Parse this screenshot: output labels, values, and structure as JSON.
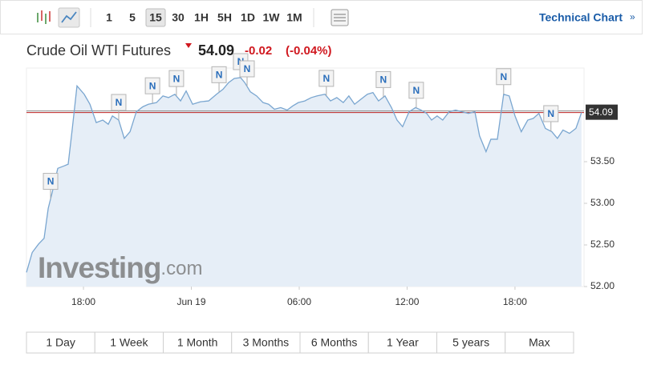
{
  "toolbar": {
    "intervals": [
      "1",
      "5",
      "15",
      "30",
      "1H",
      "5H",
      "1D",
      "1W",
      "1M"
    ],
    "link": "Technical Chart"
  },
  "header": {
    "title": "Crude Oil WTI Futures",
    "price": 54.09,
    "change": "-0.02",
    "change_pct": "(-0.04%)"
  },
  "watermark": {
    "brand": "Investing",
    "suffix": ".com"
  },
  "chart_data": {
    "type": "line",
    "color": "#7aa6d0",
    "fill": "#e6eef7",
    "grid": false,
    "x": [
      -9.17,
      -8.85,
      -8.5,
      -8.19,
      -7.96,
      -7.74,
      -7.43,
      -7.07,
      -6.85,
      -6.62,
      -6.36,
      -5.96,
      -5.64,
      -5.29,
      -4.93,
      -4.62,
      -4.39,
      -4.04,
      -3.73,
      -3.41,
      -3.06,
      -2.7,
      -2.39,
      -1.94,
      -1.58,
      -1.27,
      -0.92,
      -0.6,
      -0.29,
      0.07,
      0.51,
      0.96,
      1.4,
      1.76,
      2.07,
      2.39,
      2.74,
      2.97,
      3.28,
      3.63,
      3.99,
      4.3,
      4.62,
      4.97,
      5.33,
      5.64,
      5.95,
      6.31,
      6.67,
      6.98,
      7.43,
      7.74,
      8.09,
      8.45,
      8.76,
      9.08,
      9.43,
      9.79,
      10.1,
      10.41,
      10.77,
      11.13,
      11.44,
      11.75,
      12.11,
      12.47,
      12.78,
      13.09,
      13.36,
      13.67,
      13.98,
      14.34,
      14.7,
      15.05,
      15.41,
      15.77,
      16.03,
      16.39,
      16.66,
      17.02,
      17.37,
      17.68,
      18.0,
      18.35,
      18.71,
      19.02,
      19.33,
      19.69,
      20.05,
      20.36,
      20.67,
      21.03,
      21.39,
      21.7
    ],
    "values": [
      52.17,
      52.41,
      52.51,
      52.58,
      52.94,
      53.13,
      53.42,
      53.45,
      53.47,
      53.9,
      54.41,
      54.31,
      54.19,
      53.97,
      54.0,
      53.95,
      54.05,
      54.0,
      53.78,
      53.86,
      54.1,
      54.16,
      54.19,
      54.21,
      54.29,
      54.27,
      54.31,
      54.23,
      54.35,
      54.19,
      54.22,
      54.23,
      54.31,
      54.37,
      54.45,
      54.5,
      54.51,
      54.45,
      54.34,
      54.29,
      54.21,
      54.19,
      54.13,
      54.15,
      54.12,
      54.17,
      54.21,
      54.23,
      54.27,
      54.29,
      54.31,
      54.23,
      54.27,
      54.21,
      54.29,
      54.19,
      54.25,
      54.31,
      54.33,
      54.23,
      54.29,
      54.15,
      54.0,
      53.92,
      54.1,
      54.15,
      54.12,
      54.08,
      54.0,
      54.05,
      54.0,
      54.1,
      54.12,
      54.1,
      54.08,
      54.1,
      53.81,
      53.62,
      53.77,
      53.77,
      54.31,
      54.29,
      54.05,
      53.86,
      54.0,
      54.02,
      54.08,
      53.9,
      53.86,
      53.78,
      53.88,
      53.84,
      53.9,
      54.09
    ],
    "last_price": 54.09,
    "xlim": [
      -9.17,
      21.84
    ],
    "ylim": [
      52,
      54.625
    ],
    "xticks": [
      {
        "value": -6,
        "label": "18:00"
      },
      {
        "value": 0,
        "label": "Jun 19"
      },
      {
        "value": 6,
        "label": "06:00"
      },
      {
        "value": 12,
        "label": "12:00"
      },
      {
        "value": 18,
        "label": "18:00"
      }
    ],
    "yticks": [
      {
        "value": 52,
        "label": "52.00"
      },
      {
        "value": 52.5,
        "label": "52.50"
      },
      {
        "value": 53,
        "label": "53.00"
      },
      {
        "value": 53.5,
        "label": "53.50"
      }
    ],
    "annotations": [
      {
        "x": -7.83,
        "text": "N"
      },
      {
        "x": -4.04,
        "text": "N"
      },
      {
        "x": -2.16,
        "text": "N"
      },
      {
        "x": -0.83,
        "text": "N"
      },
      {
        "x": 1.54,
        "text": "N"
      },
      {
        "x": 2.74,
        "text": "N"
      },
      {
        "x": 3.1,
        "text": "N"
      },
      {
        "x": 7.51,
        "text": "N"
      },
      {
        "x": 10.68,
        "text": "N"
      },
      {
        "x": 12.51,
        "text": "N"
      },
      {
        "x": 17.37,
        "text": "N"
      },
      {
        "x": 20.0,
        "text": "N"
      }
    ]
  },
  "ranges": [
    "1 Day",
    "1 Week",
    "1 Month",
    "3 Months",
    "6 Months",
    "1 Year",
    "5 years",
    "Max"
  ]
}
